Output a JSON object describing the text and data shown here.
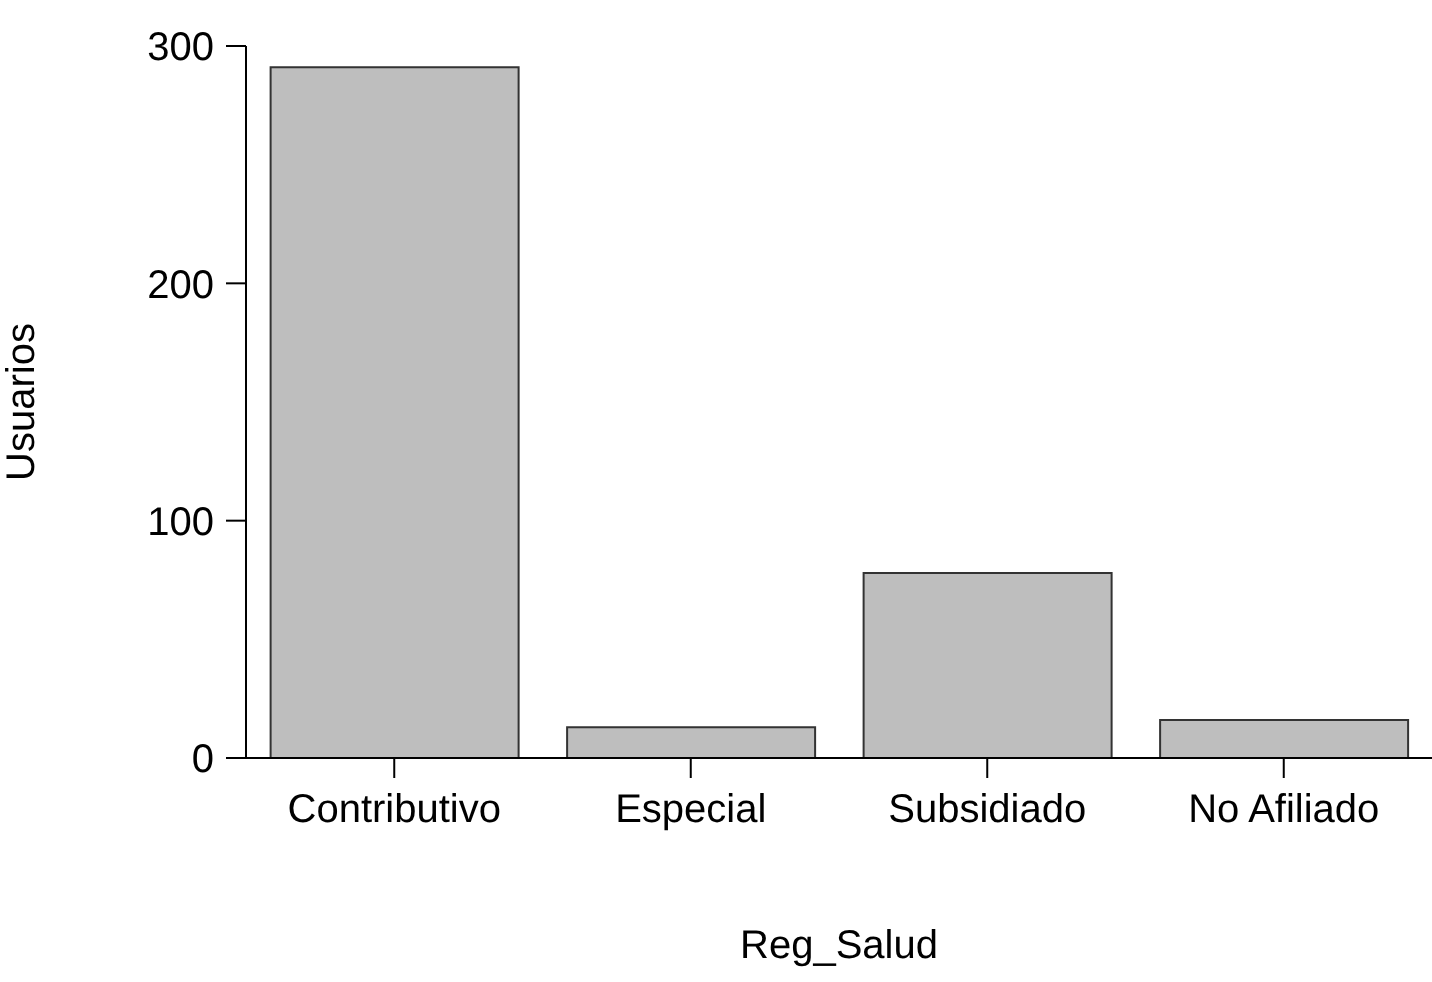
{
  "chart_data": {
    "type": "bar",
    "xlabel": "Reg_Salud",
    "ylabel": "Usuarios",
    "categories": [
      "Contributivo",
      "Especial",
      "Subsidiado",
      "No Afiliado"
    ],
    "values": [
      291,
      13,
      78,
      16
    ],
    "color": "#bebebe",
    "ylim": [
      0,
      300
    ],
    "yticks": [
      0,
      100,
      200,
      300
    ],
    "grid": false,
    "legend": false
  }
}
